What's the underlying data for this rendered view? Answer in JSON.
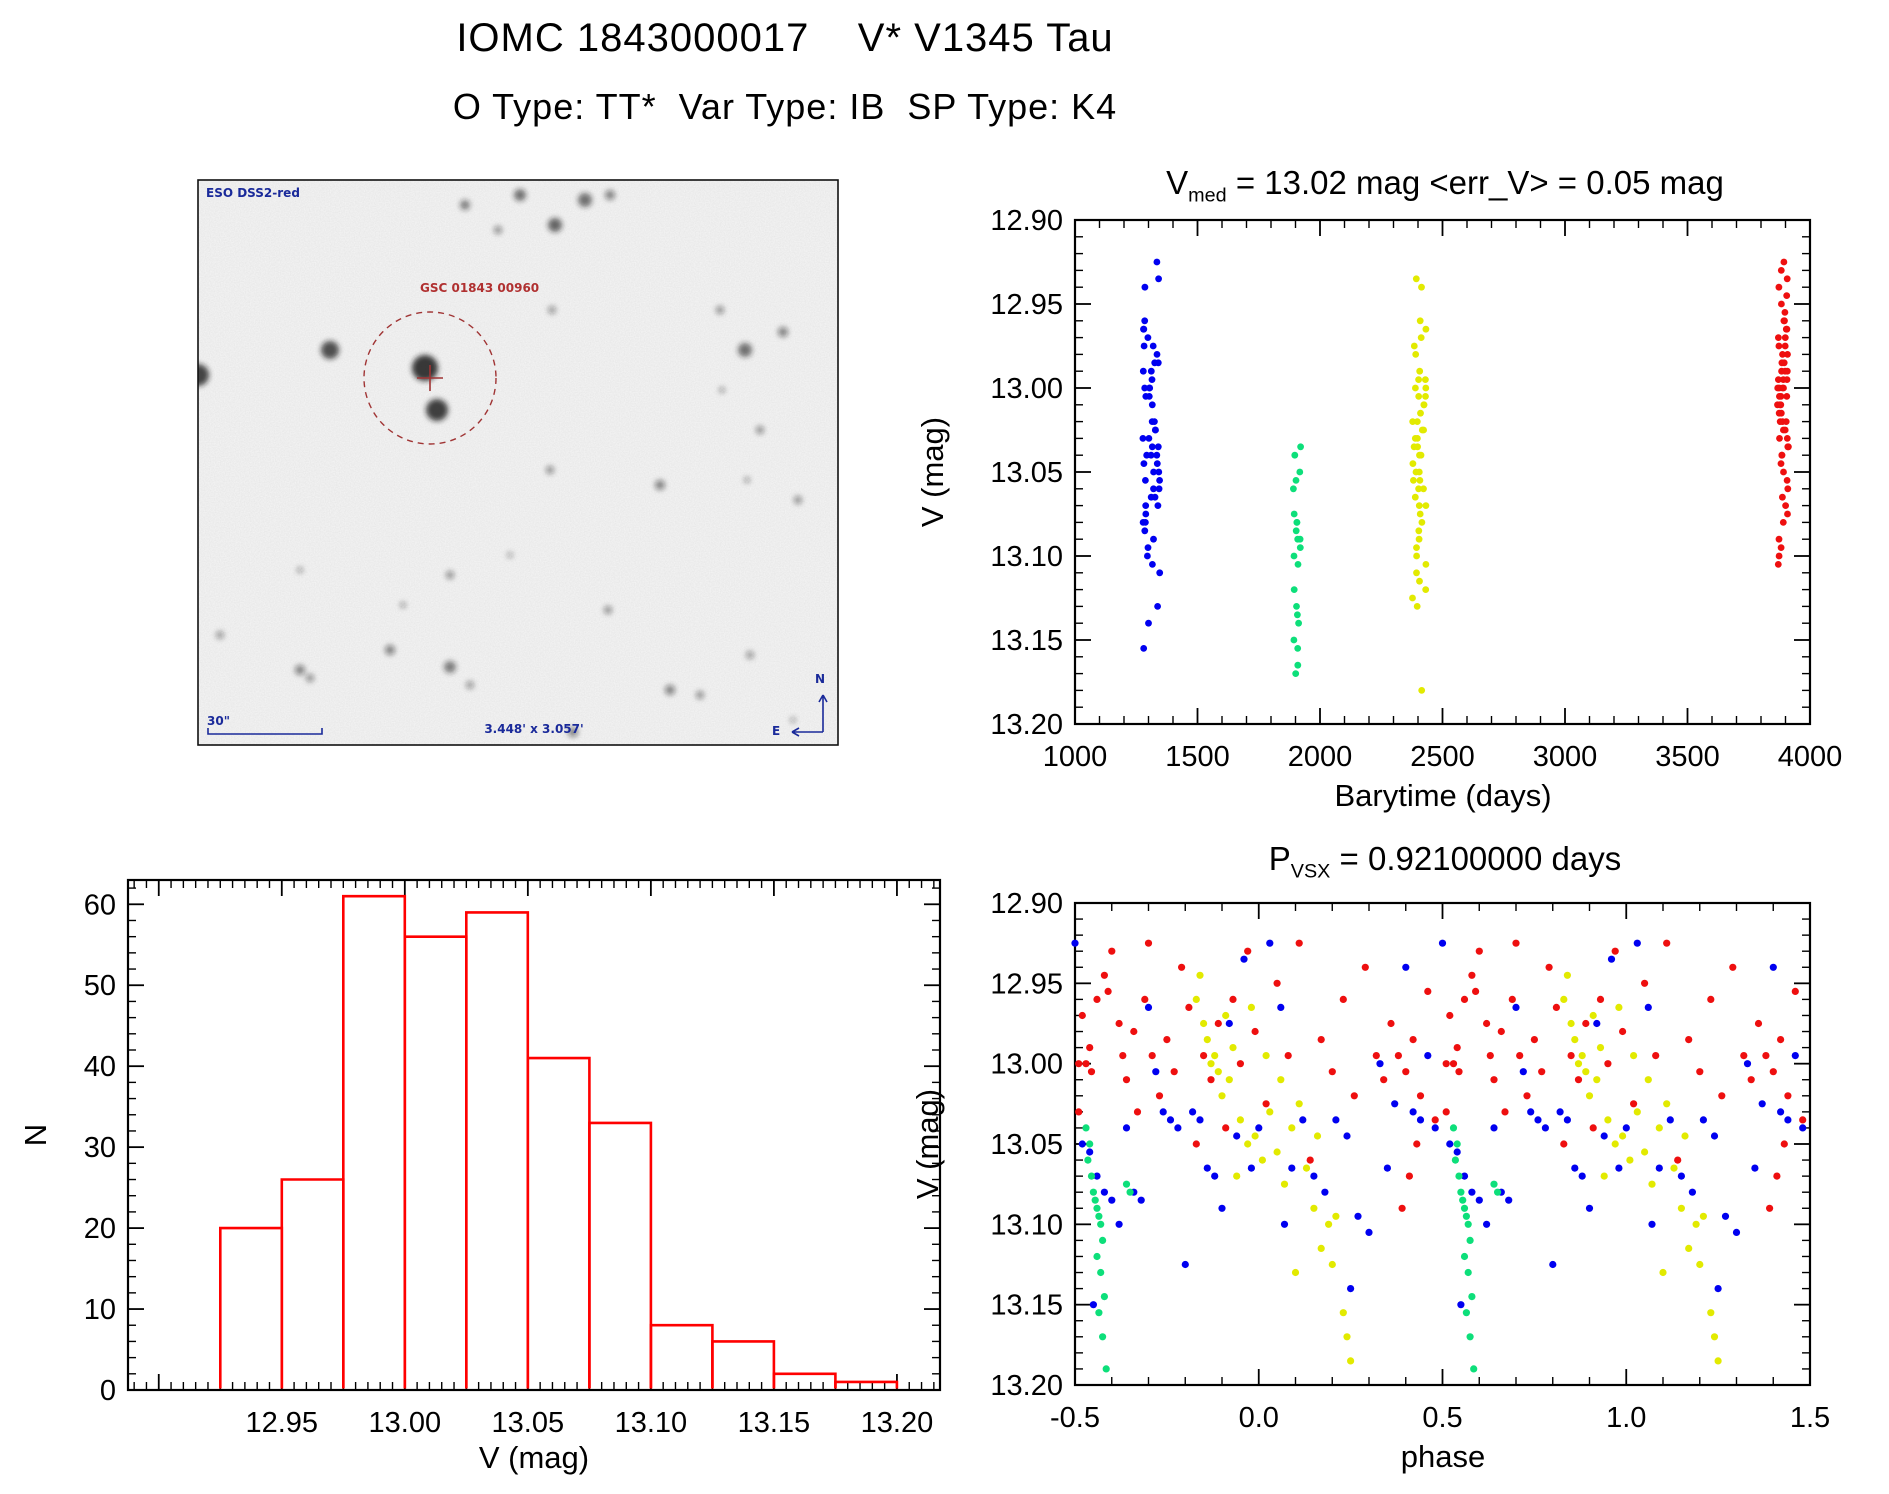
{
  "header": {
    "line1": "IOMC 1843000017    V* V1345 Tau",
    "line2": "O Type: TT*  Var Type: IB  SP Type: K4"
  },
  "finder_chart": {
    "survey_label": "ESO DSS2-red",
    "star_label": "GSC 01843 00960",
    "scale_label": "30\"",
    "fov_label": "3.448' x 3.057'",
    "compass": {
      "north": "N",
      "east": "E"
    },
    "annotation_color": "#1a2a9a",
    "target_label_color": "#b03030",
    "target_marker_color": "#a03434",
    "stars": [
      [
        425,
        368,
        13,
        0.88
      ],
      [
        437,
        410,
        11,
        0.82
      ],
      [
        198,
        375,
        11,
        0.8
      ],
      [
        330,
        350,
        9,
        0.75
      ],
      [
        465,
        205,
        5,
        0.55
      ],
      [
        520,
        195,
        6,
        0.6
      ],
      [
        555,
        225,
        7,
        0.65
      ],
      [
        585,
        200,
        7,
        0.6
      ],
      [
        610,
        195,
        5,
        0.5
      ],
      [
        498,
        230,
        4,
        0.45
      ],
      [
        745,
        350,
        7,
        0.6
      ],
      [
        783,
        332,
        5,
        0.5
      ],
      [
        720,
        310,
        4,
        0.45
      ],
      [
        760,
        430,
        4,
        0.45
      ],
      [
        722,
        390,
        3,
        0.4
      ],
      [
        798,
        500,
        4,
        0.45
      ],
      [
        747,
        480,
        3,
        0.4
      ],
      [
        550,
        470,
        4,
        0.45
      ],
      [
        660,
        485,
        5,
        0.5
      ],
      [
        450,
        575,
        4,
        0.45
      ],
      [
        300,
        570,
        3,
        0.4
      ],
      [
        510,
        555,
        3,
        0.35
      ],
      [
        608,
        610,
        4,
        0.45
      ],
      [
        403,
        605,
        3,
        0.4
      ],
      [
        300,
        670,
        5,
        0.5
      ],
      [
        310,
        678,
        4,
        0.45
      ],
      [
        450,
        667,
        6,
        0.55
      ],
      [
        390,
        650,
        5,
        0.5
      ],
      [
        470,
        685,
        4,
        0.4
      ],
      [
        670,
        690,
        5,
        0.5
      ],
      [
        700,
        695,
        4,
        0.45
      ],
      [
        573,
        732,
        5,
        0.5
      ],
      [
        750,
        655,
        4,
        0.4
      ],
      [
        220,
        635,
        4,
        0.4
      ],
      [
        793,
        720,
        3,
        0.35
      ],
      [
        552,
        310,
        4,
        0.4
      ]
    ]
  },
  "colors": {
    "blue": "#0000f0",
    "green": "#0ddf7a",
    "yellow": "#e2ea00",
    "red": "#ee0f0f",
    "hist": "#ff0000",
    "axis": "#000000"
  },
  "chart_data": [
    {
      "id": "barytime",
      "type": "scatter",
      "title_parts": {
        "main": "V",
        "sub": "med",
        "rest": " = 13.02 mag <err_V> = 0.05 mag"
      },
      "xlabel": "Barytime (days)",
      "ylabel": "V (mag)",
      "xlim": [
        1000,
        4000
      ],
      "ylim_top": 12.9,
      "ylim_bottom": 13.2,
      "xticks": [
        1000,
        1500,
        2000,
        2500,
        3000,
        3500,
        4000
      ],
      "yticks": [
        12.9,
        12.95,
        13.0,
        13.05,
        13.1,
        13.15,
        13.2
      ],
      "clusters": [
        {
          "color": "blue",
          "t": 1312,
          "t_spread": 70,
          "mags": [
            12.925,
            12.935,
            12.94,
            12.96,
            12.965,
            12.965,
            12.97,
            12.975,
            12.975,
            12.98,
            12.985,
            12.985,
            12.99,
            12.99,
            12.995,
            13.0,
            13.0,
            13.0,
            13.005,
            13.005,
            13.01,
            13.02,
            13.02,
            13.025,
            13.025,
            13.03,
            13.03,
            13.035,
            13.035,
            13.04,
            13.04,
            13.04,
            13.045,
            13.045,
            13.05,
            13.05,
            13.055,
            13.055,
            13.06,
            13.06,
            13.065,
            13.065,
            13.07,
            13.07,
            13.075,
            13.08,
            13.08,
            13.085,
            13.09,
            13.095,
            13.1,
            13.105,
            13.11,
            13.13,
            13.14,
            13.155
          ]
        },
        {
          "color": "green",
          "t": 1906,
          "t_spread": 30,
          "mags": [
            13.035,
            13.04,
            13.05,
            13.055,
            13.06,
            13.075,
            13.08,
            13.08,
            13.085,
            13.09,
            13.09,
            13.095,
            13.1,
            13.105,
            13.12,
            13.13,
            13.135,
            13.14,
            13.15,
            13.155,
            13.165,
            13.17
          ]
        },
        {
          "color": "yellow",
          "t": 2405,
          "t_spread": 55,
          "mags": [
            12.935,
            12.94,
            12.96,
            12.965,
            12.97,
            12.975,
            12.98,
            12.99,
            12.995,
            12.995,
            13.0,
            13.0,
            13.005,
            13.005,
            13.01,
            13.01,
            13.015,
            13.02,
            13.02,
            13.025,
            13.025,
            13.03,
            13.03,
            13.035,
            13.035,
            13.04,
            13.04,
            13.045,
            13.05,
            13.05,
            13.055,
            13.055,
            13.06,
            13.06,
            13.065,
            13.07,
            13.07,
            13.075,
            13.08,
            13.085,
            13.09,
            13.095,
            13.1,
            13.105,
            13.11,
            13.115,
            13.12,
            13.125,
            13.13,
            13.18
          ]
        },
        {
          "color": "red",
          "t": 3890,
          "t_spread": 45,
          "mags": [
            12.925,
            12.93,
            12.935,
            12.94,
            12.945,
            12.95,
            12.955,
            12.96,
            12.96,
            12.965,
            12.965,
            12.97,
            12.97,
            12.975,
            12.975,
            12.98,
            12.98,
            12.985,
            12.985,
            12.99,
            12.99,
            12.99,
            12.995,
            12.995,
            12.995,
            13.0,
            13.0,
            13.0,
            13.0,
            13.005,
            13.005,
            13.005,
            13.01,
            13.01,
            13.01,
            13.015,
            13.015,
            13.02,
            13.02,
            13.02,
            13.025,
            13.025,
            13.03,
            13.03,
            13.035,
            13.035,
            13.04,
            13.04,
            13.045,
            13.05,
            13.055,
            13.06,
            13.065,
            13.07,
            13.075,
            13.08,
            13.09,
            13.095,
            13.1,
            13.105
          ]
        }
      ]
    },
    {
      "id": "histogram",
      "type": "bar",
      "xlabel": "V (mag)",
      "ylabel": "N",
      "bin_start": 12.925,
      "bin_width": 0.025,
      "values": [
        20,
        26,
        61,
        56,
        59,
        41,
        33,
        8,
        6,
        2,
        1
      ],
      "xlim": [
        12.8875,
        13.2175
      ],
      "ylim": [
        0,
        63
      ],
      "xticks": [
        12.95,
        13.0,
        13.05,
        13.1,
        13.15,
        13.2
      ],
      "yticks": [
        0,
        10,
        20,
        30,
        40,
        50,
        60
      ]
    },
    {
      "id": "phase",
      "type": "scatter",
      "title_parts": {
        "main": "P",
        "sub": "VSX",
        "rest": " = 0.92100000 days"
      },
      "xlabel": "phase",
      "ylabel": "V (mag)",
      "xlim": [
        -0.5,
        1.5
      ],
      "ylim_top": 12.9,
      "ylim_bottom": 13.2,
      "xticks": [
        -0.5,
        0.0,
        0.5,
        1.0,
        1.5
      ],
      "yticks": [
        12.9,
        12.95,
        13.0,
        13.05,
        13.1,
        13.15,
        13.2
      ],
      "period_repeat": 1.0,
      "points": [
        [
          -0.49,
          13.0,
          "r"
        ],
        [
          -0.48,
          12.97,
          "r"
        ],
        [
          -0.47,
          13.0,
          "r"
        ],
        [
          -0.46,
          12.99,
          "r"
        ],
        [
          -0.455,
          13.005,
          "r"
        ],
        [
          -0.44,
          12.96,
          "r"
        ],
        [
          -0.49,
          13.03,
          "r"
        ],
        [
          -0.42,
          12.945,
          "r"
        ],
        [
          -0.41,
          12.955,
          "r"
        ],
        [
          -0.4,
          12.93,
          "r"
        ],
        [
          -0.38,
          12.975,
          "r"
        ],
        [
          -0.37,
          12.995,
          "r"
        ],
        [
          -0.36,
          13.01,
          "r"
        ],
        [
          -0.34,
          12.98,
          "r"
        ],
        [
          -0.33,
          13.03,
          "r"
        ],
        [
          -0.31,
          12.96,
          "r"
        ],
        [
          -0.3,
          12.925,
          "r"
        ],
        [
          -0.29,
          12.995,
          "r"
        ],
        [
          -0.27,
          13.02,
          "r"
        ],
        [
          -0.25,
          12.985,
          "r"
        ],
        [
          -0.23,
          13.005,
          "r"
        ],
        [
          -0.21,
          12.94,
          "r"
        ],
        [
          -0.19,
          12.965,
          "r"
        ],
        [
          -0.17,
          13.05,
          "r"
        ],
        [
          -0.15,
          12.995,
          "r"
        ],
        [
          -0.13,
          13.01,
          "r"
        ],
        [
          -0.11,
          12.975,
          "r"
        ],
        [
          -0.09,
          13.04,
          "r"
        ],
        [
          -0.07,
          12.96,
          "r"
        ],
        [
          -0.05,
          13.0,
          "r"
        ],
        [
          -0.03,
          12.93,
          "r"
        ],
        [
          -0.01,
          12.98,
          "r"
        ],
        [
          0.02,
          13.025,
          "r"
        ],
        [
          0.05,
          12.95,
          "r"
        ],
        [
          0.08,
          12.995,
          "r"
        ],
        [
          0.11,
          12.925,
          "r"
        ],
        [
          0.14,
          13.06,
          "r"
        ],
        [
          0.17,
          12.985,
          "r"
        ],
        [
          0.2,
          13.005,
          "r"
        ],
        [
          0.23,
          12.96,
          "r"
        ],
        [
          0.26,
          13.02,
          "r"
        ],
        [
          0.29,
          12.94,
          "r"
        ],
        [
          0.32,
          12.995,
          "r"
        ],
        [
          0.34,
          13.01,
          "r"
        ],
        [
          0.36,
          12.975,
          "r"
        ],
        [
          0.38,
          12.995,
          "r"
        ],
        [
          0.4,
          13.005,
          "r"
        ],
        [
          0.42,
          12.985,
          "r"
        ],
        [
          0.44,
          13.02,
          "r"
        ],
        [
          0.46,
          12.955,
          "r"
        ],
        [
          0.48,
          13.035,
          "r"
        ],
        [
          0.43,
          13.05,
          "r"
        ],
        [
          0.41,
          13.07,
          "r"
        ],
        [
          0.39,
          13.09,
          "r"
        ],
        [
          -0.5,
          12.925,
          "b"
        ],
        [
          -0.48,
          13.05,
          "b"
        ],
        [
          -0.46,
          13.055,
          "b"
        ],
        [
          -0.44,
          13.07,
          "b"
        ],
        [
          -0.42,
          13.08,
          "b"
        ],
        [
          -0.4,
          13.085,
          "b"
        ],
        [
          -0.38,
          13.1,
          "b"
        ],
        [
          -0.36,
          13.04,
          "b"
        ],
        [
          -0.34,
          13.08,
          "b"
        ],
        [
          -0.32,
          13.085,
          "b"
        ],
        [
          -0.3,
          12.965,
          "b"
        ],
        [
          -0.28,
          13.005,
          "b"
        ],
        [
          -0.26,
          13.03,
          "b"
        ],
        [
          -0.24,
          13.035,
          "b"
        ],
        [
          -0.22,
          13.04,
          "b"
        ],
        [
          -0.2,
          13.125,
          "b"
        ],
        [
          -0.18,
          13.03,
          "b"
        ],
        [
          -0.16,
          13.035,
          "b"
        ],
        [
          -0.14,
          13.065,
          "b"
        ],
        [
          -0.12,
          13.07,
          "b"
        ],
        [
          -0.1,
          13.09,
          "b"
        ],
        [
          -0.08,
          12.975,
          "b"
        ],
        [
          -0.06,
          13.045,
          "b"
        ],
        [
          -0.04,
          12.935,
          "b"
        ],
        [
          -0.02,
          13.065,
          "b"
        ],
        [
          0.0,
          13.04,
          "b"
        ],
        [
          0.03,
          12.925,
          "b"
        ],
        [
          0.06,
          12.965,
          "b"
        ],
        [
          0.09,
          13.065,
          "b"
        ],
        [
          0.12,
          13.035,
          "b"
        ],
        [
          0.15,
          13.07,
          "b"
        ],
        [
          0.18,
          13.08,
          "b"
        ],
        [
          0.21,
          13.035,
          "b"
        ],
        [
          0.24,
          13.045,
          "b"
        ],
        [
          0.27,
          13.095,
          "b"
        ],
        [
          0.3,
          13.105,
          "b"
        ],
        [
          0.33,
          13.0,
          "b"
        ],
        [
          0.35,
          13.065,
          "b"
        ],
        [
          0.37,
          13.025,
          "b"
        ],
        [
          0.4,
          12.94,
          "b"
        ],
        [
          0.42,
          13.03,
          "b"
        ],
        [
          0.44,
          13.035,
          "b"
        ],
        [
          0.46,
          12.995,
          "b"
        ],
        [
          0.48,
          13.04,
          "b"
        ],
        [
          0.25,
          13.14,
          "b"
        ],
        [
          -0.45,
          13.15,
          "b"
        ],
        [
          0.07,
          13.1,
          "b"
        ],
        [
          -0.17,
          12.96,
          "y"
        ],
        [
          -0.16,
          12.945,
          "y"
        ],
        [
          -0.15,
          12.975,
          "y"
        ],
        [
          -0.14,
          12.985,
          "y"
        ],
        [
          -0.13,
          13.0,
          "y"
        ],
        [
          -0.12,
          12.995,
          "y"
        ],
        [
          -0.11,
          13.005,
          "y"
        ],
        [
          -0.1,
          13.02,
          "y"
        ],
        [
          -0.09,
          12.97,
          "y"
        ],
        [
          -0.08,
          13.01,
          "y"
        ],
        [
          -0.07,
          12.99,
          "y"
        ],
        [
          -0.05,
          13.035,
          "y"
        ],
        [
          -0.03,
          13.05,
          "y"
        ],
        [
          -0.01,
          13.045,
          "y"
        ],
        [
          0.01,
          13.06,
          "y"
        ],
        [
          0.03,
          13.03,
          "y"
        ],
        [
          0.05,
          13.055,
          "y"
        ],
        [
          0.07,
          13.075,
          "y"
        ],
        [
          0.09,
          13.04,
          "y"
        ],
        [
          0.11,
          13.025,
          "y"
        ],
        [
          0.13,
          13.065,
          "y"
        ],
        [
          0.15,
          13.09,
          "y"
        ],
        [
          0.17,
          13.115,
          "y"
        ],
        [
          0.19,
          13.1,
          "y"
        ],
        [
          0.2,
          13.125,
          "y"
        ],
        [
          0.21,
          13.095,
          "y"
        ],
        [
          0.23,
          13.155,
          "y"
        ],
        [
          0.24,
          13.17,
          "y"
        ],
        [
          0.25,
          13.185,
          "y"
        ],
        [
          0.1,
          13.13,
          "y"
        ],
        [
          -0.02,
          12.965,
          "y"
        ],
        [
          0.02,
          12.995,
          "y"
        ],
        [
          0.06,
          13.01,
          "y"
        ],
        [
          -0.06,
          13.07,
          "y"
        ],
        [
          0.16,
          13.045,
          "y"
        ],
        [
          -0.47,
          13.04,
          "g"
        ],
        [
          -0.46,
          13.05,
          "g"
        ],
        [
          -0.465,
          13.06,
          "g"
        ],
        [
          -0.455,
          13.07,
          "g"
        ],
        [
          -0.45,
          13.08,
          "g"
        ],
        [
          -0.445,
          13.085,
          "g"
        ],
        [
          -0.44,
          13.09,
          "g"
        ],
        [
          -0.435,
          13.095,
          "g"
        ],
        [
          -0.43,
          13.1,
          "g"
        ],
        [
          -0.425,
          13.11,
          "g"
        ],
        [
          -0.44,
          13.12,
          "g"
        ],
        [
          -0.43,
          13.13,
          "g"
        ],
        [
          -0.42,
          13.145,
          "g"
        ],
        [
          -0.435,
          13.155,
          "g"
        ],
        [
          -0.425,
          13.17,
          "g"
        ],
        [
          -0.415,
          13.19,
          "g"
        ],
        [
          -0.35,
          13.08,
          "g"
        ],
        [
          -0.36,
          13.075,
          "g"
        ]
      ]
    }
  ]
}
